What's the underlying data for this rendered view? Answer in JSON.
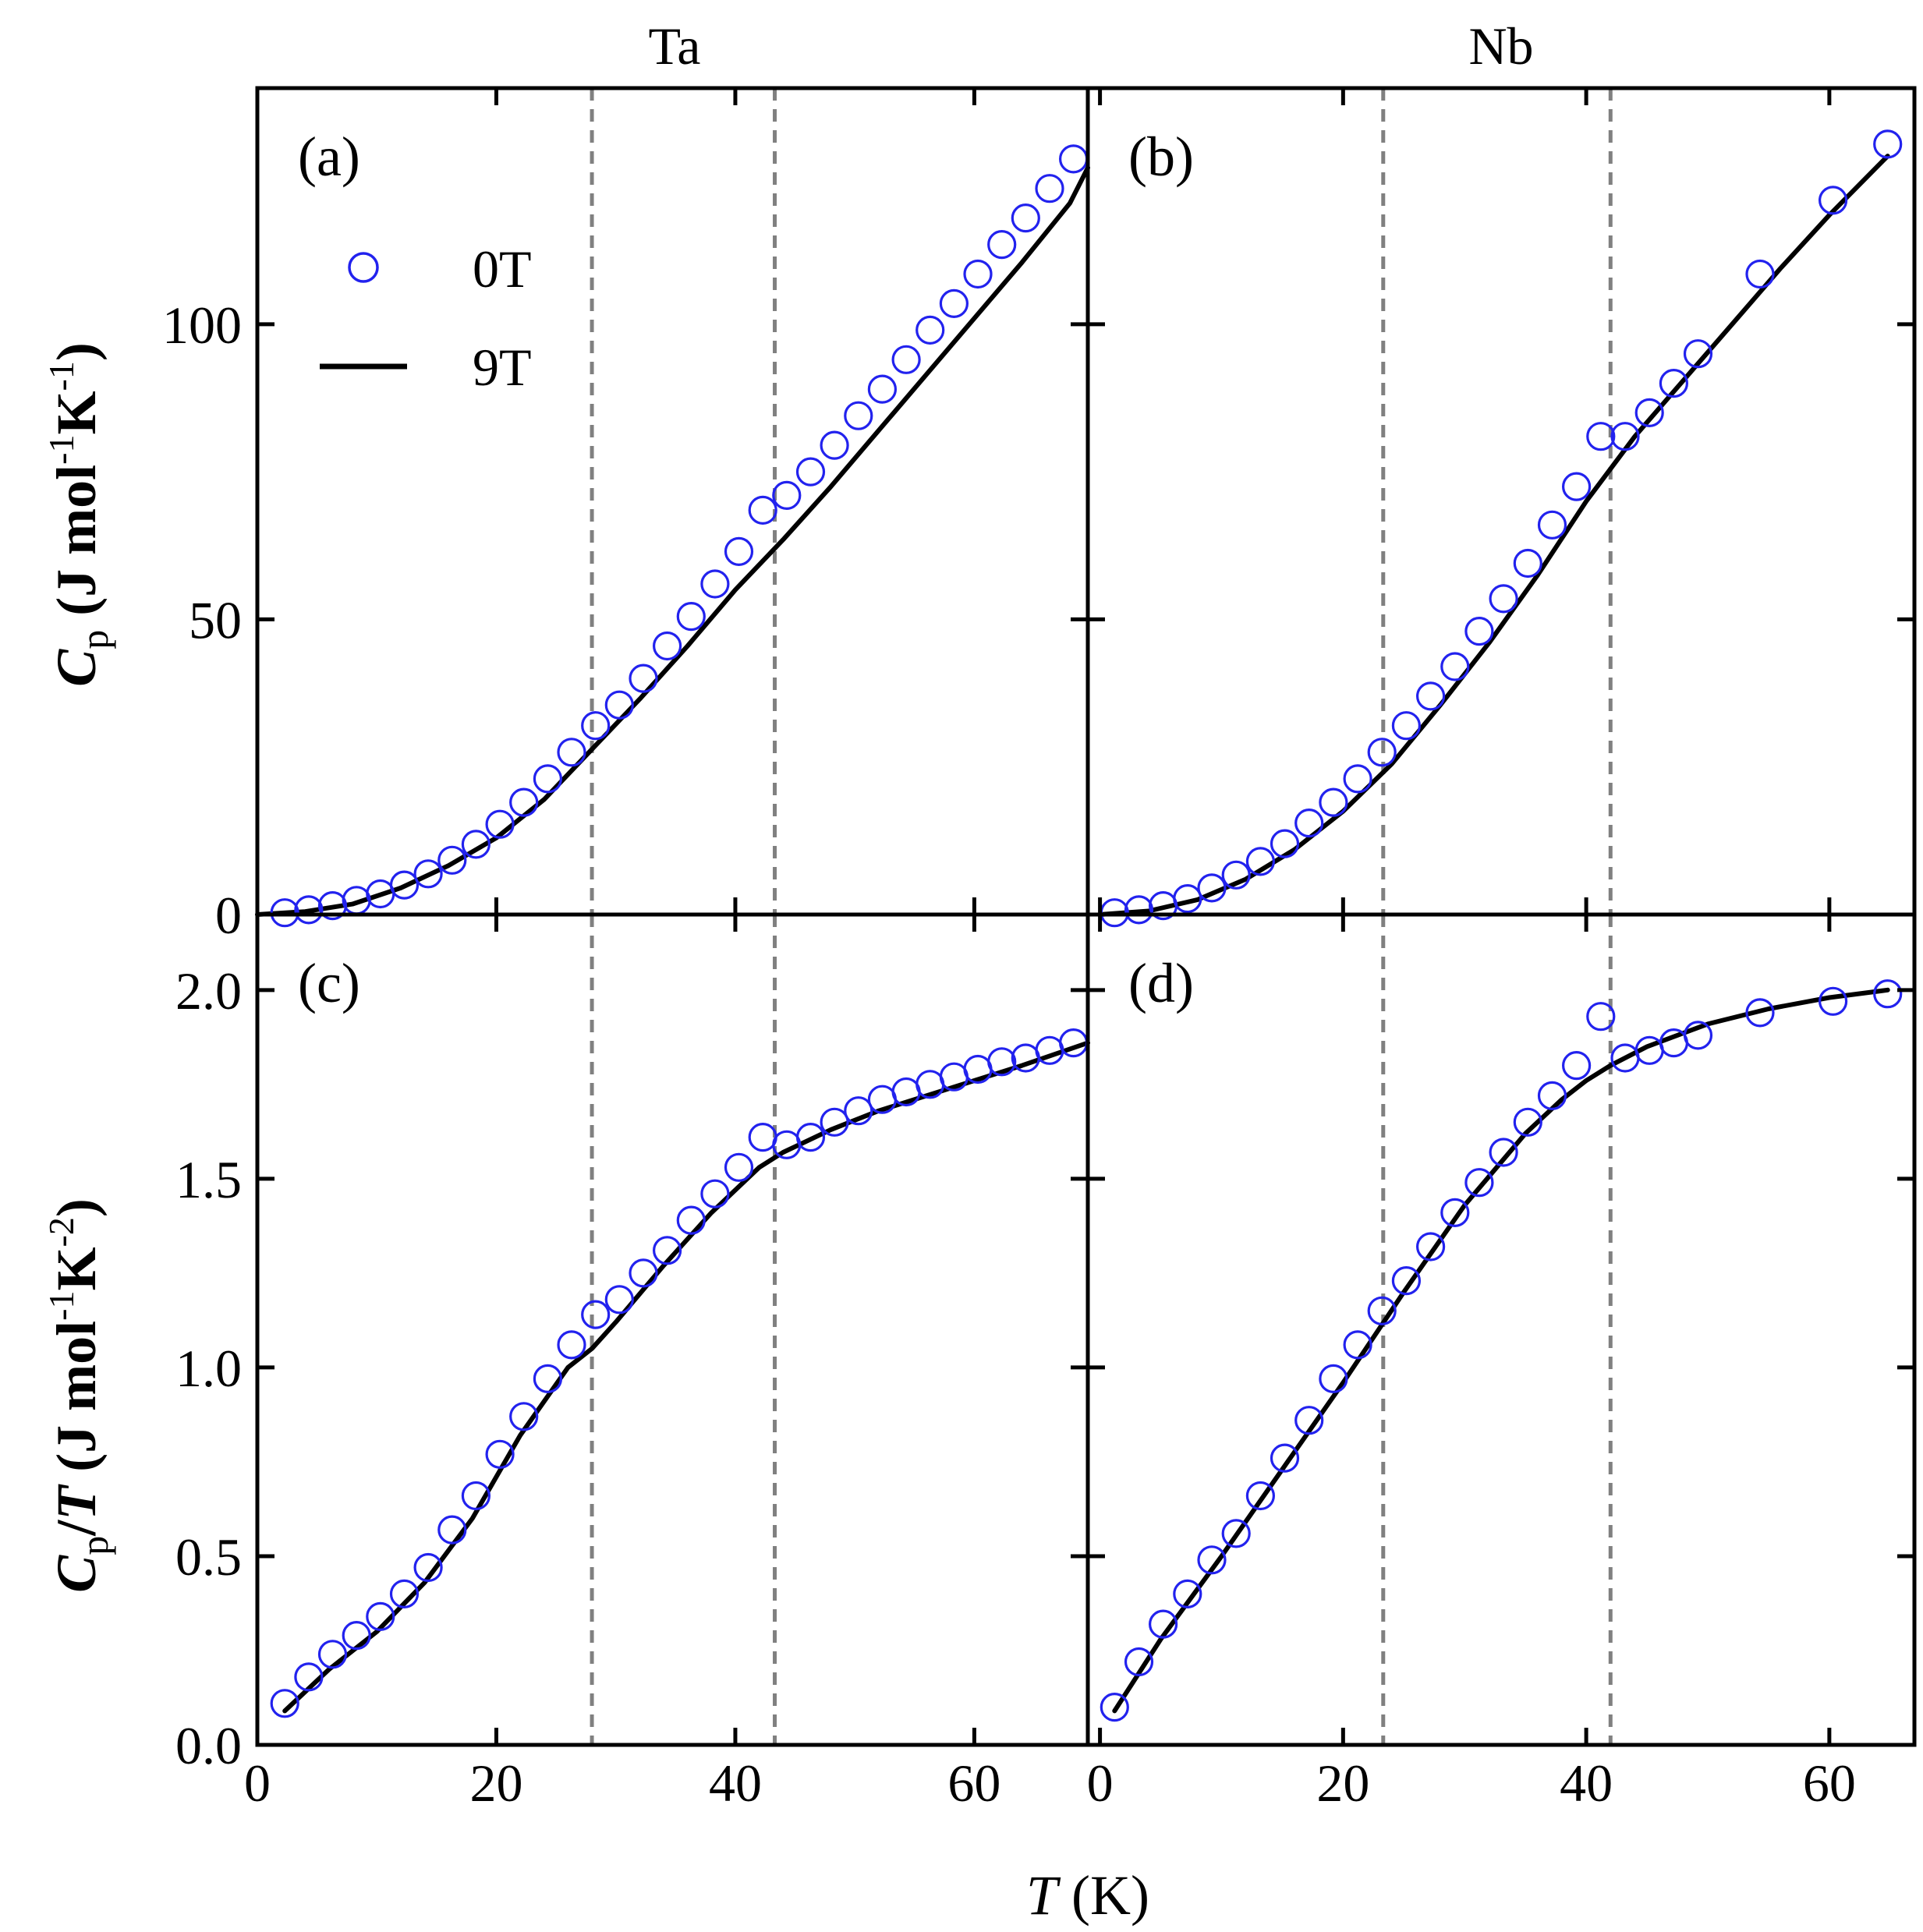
{
  "figure": {
    "column_titles": [
      "Ta",
      "Nb"
    ],
    "xlabel_italic": "T",
    "xlabel_unit": "(K)",
    "ylabel_top": {
      "sym": "C",
      "sub": "p",
      "unit": "(J mol",
      "e1": "-1",
      "k": "K",
      "e2": "-1",
      "close": ")"
    },
    "ylabel_bottom": {
      "sym": "C",
      "sub": "p",
      "slash": "/",
      "sym2": "T",
      "unit": "(J mol",
      "e1": "-1",
      "k": "K",
      "e2": "-2",
      "close": ")"
    },
    "legend": [
      {
        "label": "0T",
        "style": "open-circle",
        "color": "#2222ee"
      },
      {
        "label": "9T",
        "style": "line",
        "color": "#000000"
      }
    ],
    "colors": {
      "markers": "#2222ee",
      "line": "#000000",
      "guides": "#808080"
    }
  },
  "chart_data": [
    {
      "panel": "(a)",
      "type": "line",
      "column": "Ta",
      "xlim": [
        0,
        69.5
      ],
      "ylim": [
        0,
        140
      ],
      "xticks": [
        0,
        20,
        40,
        60
      ],
      "yticks": [
        0,
        50,
        100
      ],
      "guide_lines_x": [
        28,
        43.3
      ],
      "series": [
        {
          "name": "0T",
          "type": "scatter",
          "x": [
            2.3,
            4.3,
            6.3,
            8.3,
            10.3,
            12.3,
            14.3,
            16.3,
            18.3,
            20.3,
            22.3,
            24.3,
            26.3,
            28.3,
            30.3,
            32.3,
            34.3,
            36.3,
            38.3,
            40.3,
            42.3,
            44.3,
            46.3,
            48.3,
            50.3,
            52.3,
            54.3,
            56.3,
            58.3,
            60.3,
            62.3,
            64.3,
            66.3,
            68.3
          ],
          "y": [
            0.3,
            0.8,
            1.5,
            2.4,
            3.5,
            5.0,
            6.9,
            9.2,
            11.9,
            15.3,
            19.0,
            23.0,
            27.5,
            32.0,
            35.5,
            40.0,
            45.5,
            50.5,
            56.0,
            61.5,
            68.5,
            71.0,
            75.0,
            79.5,
            84.5,
            89.0,
            94.0,
            99.0,
            103.5,
            108.5,
            113.5,
            118.0,
            123.0,
            128.0
          ]
        },
        {
          "name": "9T",
          "type": "line",
          "x": [
            0,
            4,
            8,
            12,
            16,
            20,
            24,
            28,
            32,
            36,
            40,
            44,
            48,
            52,
            56,
            60,
            64,
            68,
            69.5
          ],
          "y": [
            0,
            0.5,
            1.8,
            4.5,
            8.3,
            13.0,
            19.5,
            28.0,
            36.5,
            45.5,
            55.0,
            63.5,
            72.5,
            82.0,
            91.5,
            101.0,
            110.5,
            120.5,
            126.5
          ]
        }
      ]
    },
    {
      "panel": "(b)",
      "type": "line",
      "column": "Nb",
      "xlim": [
        -1,
        67
      ],
      "ylim": [
        0,
        140
      ],
      "xticks": [
        0,
        20,
        40,
        60
      ],
      "yticks": [
        0,
        50,
        100
      ],
      "guide_lines_x": [
        23.3,
        42
      ],
      "series": [
        {
          "name": "0T",
          "type": "scatter",
          "x": [
            1.2,
            3.2,
            5.2,
            7.2,
            9.2,
            11.2,
            13.2,
            15.2,
            17.2,
            19.2,
            21.2,
            23.2,
            25.2,
            27.2,
            29.2,
            31.2,
            33.2,
            35.2,
            37.2,
            39.2,
            41.2,
            43.2,
            45.2,
            47.2,
            49.2,
            54.3,
            60.3,
            64.8
          ],
          "y": [
            0.3,
            0.8,
            1.5,
            2.7,
            4.5,
            6.7,
            9.0,
            12.0,
            15.5,
            19.0,
            23.0,
            27.5,
            32.0,
            37.0,
            42.0,
            48.0,
            53.5,
            59.5,
            66.0,
            72.5,
            81.0,
            81.0,
            85.0,
            90.0,
            95.0,
            108.5,
            121.0,
            130.5
          ]
        },
        {
          "name": "9T",
          "type": "line",
          "x": [
            0,
            4,
            8,
            12,
            16,
            20,
            24,
            28,
            32,
            36,
            40,
            44,
            48,
            52,
            56,
            60,
            64.8
          ],
          "y": [
            0,
            0.6,
            2.5,
            6.0,
            11.0,
            17.5,
            25.5,
            35.5,
            46.0,
            57.5,
            70.0,
            81.0,
            90.5,
            100.0,
            109.5,
            118.5,
            128.5
          ]
        }
      ]
    },
    {
      "panel": "(c)",
      "type": "line",
      "column": "Ta",
      "xlim": [
        0,
        69.5
      ],
      "ylim": [
        0,
        2.2
      ],
      "xticks": [
        0,
        20,
        40,
        60
      ],
      "yticks": [
        0.0,
        0.5,
        1.0,
        1.5,
        2.0
      ],
      "guide_lines_x": [
        28,
        43.3
      ],
      "series": [
        {
          "name": "0T",
          "type": "scatter",
          "x": [
            2.3,
            4.3,
            6.3,
            8.3,
            10.3,
            12.3,
            14.3,
            16.3,
            18.3,
            20.3,
            22.3,
            24.3,
            26.3,
            28.3,
            30.3,
            32.3,
            34.3,
            36.3,
            38.3,
            40.3,
            42.3,
            44.3,
            46.3,
            48.3,
            50.3,
            52.3,
            54.3,
            56.3,
            58.3,
            60.3,
            62.3,
            64.3,
            66.3,
            68.3
          ],
          "y": [
            0.11,
            0.18,
            0.24,
            0.29,
            0.34,
            0.4,
            0.47,
            0.57,
            0.66,
            0.77,
            0.87,
            0.97,
            1.06,
            1.14,
            1.18,
            1.25,
            1.31,
            1.39,
            1.46,
            1.53,
            1.61,
            1.59,
            1.61,
            1.65,
            1.68,
            1.71,
            1.73,
            1.75,
            1.77,
            1.79,
            1.81,
            1.82,
            1.84,
            1.86
          ]
        },
        {
          "name": "9T",
          "type": "line",
          "x": [
            2.3,
            6,
            10,
            14,
            18,
            22,
            26,
            28,
            30,
            34,
            38,
            42,
            44,
            48,
            52,
            56,
            60,
            64,
            69.5
          ],
          "y": [
            0.09,
            0.2,
            0.3,
            0.43,
            0.6,
            0.82,
            1.0,
            1.05,
            1.12,
            1.27,
            1.41,
            1.53,
            1.57,
            1.63,
            1.68,
            1.72,
            1.76,
            1.8,
            1.86
          ]
        }
      ]
    },
    {
      "panel": "(d)",
      "type": "line",
      "column": "Nb",
      "xlim": [
        -1,
        67
      ],
      "ylim": [
        0,
        2.2
      ],
      "xticks": [
        0,
        20,
        40,
        60
      ],
      "yticks": [
        0.0,
        0.5,
        1.0,
        1.5,
        2.0
      ],
      "guide_lines_x": [
        23.3,
        42
      ],
      "series": [
        {
          "name": "0T",
          "type": "scatter",
          "x": [
            1.2,
            3.2,
            5.2,
            7.2,
            9.2,
            11.2,
            13.2,
            15.2,
            17.2,
            19.2,
            21.2,
            23.2,
            25.2,
            27.2,
            29.2,
            31.2,
            33.2,
            35.2,
            37.2,
            39.2,
            41.2,
            43.2,
            45.2,
            47.2,
            49.2,
            54.3,
            60.3,
            64.8
          ],
          "y": [
            0.1,
            0.22,
            0.32,
            0.4,
            0.49,
            0.56,
            0.66,
            0.76,
            0.86,
            0.97,
            1.06,
            1.15,
            1.23,
            1.32,
            1.41,
            1.49,
            1.57,
            1.65,
            1.72,
            1.8,
            1.93,
            1.82,
            1.84,
            1.86,
            1.88,
            1.94,
            1.97,
            1.99
          ]
        },
        {
          "name": "9T",
          "type": "line",
          "x": [
            1.2,
            5,
            10,
            15,
            20,
            25,
            30,
            35,
            38,
            40,
            42,
            45,
            50,
            55,
            60,
            64.8
          ],
          "y": [
            0.09,
            0.28,
            0.5,
            0.73,
            0.96,
            1.2,
            1.43,
            1.62,
            1.71,
            1.76,
            1.8,
            1.85,
            1.91,
            1.95,
            1.98,
            2.0
          ]
        }
      ]
    }
  ]
}
